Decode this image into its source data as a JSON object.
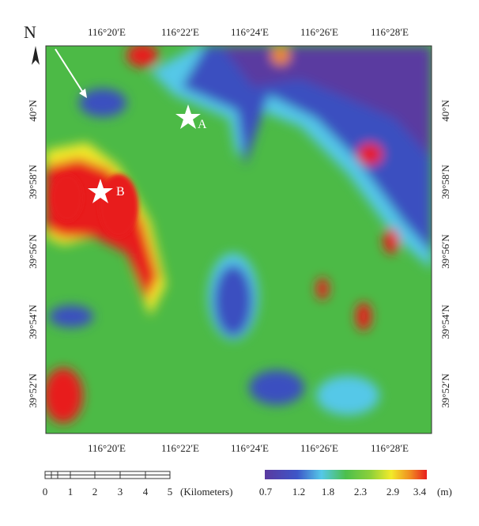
{
  "north": "N",
  "markers": [
    {
      "label": "A"
    },
    {
      "label": "B"
    }
  ],
  "top_labels": [
    "116°20′E",
    "116°22′E",
    "116°24′E",
    "116°26′E",
    "116°28′E"
  ],
  "bottom_labels": [
    "116°20′E",
    "116°22′E",
    "116°24′E",
    "116°26′E",
    "116°28′E"
  ],
  "left_labels": [
    "40°N",
    "39°58′N",
    "39°56′N",
    "39°54′N",
    "39°52′N"
  ],
  "right_labels": [
    "40°N",
    "39°58′N",
    "39°56′N",
    "39°54′N",
    "39°52′N"
  ],
  "scale_bar": {
    "labels": [
      "0",
      "1",
      "2",
      "3",
      "4",
      "5"
    ],
    "unit": "(Kilometers)"
  },
  "colorbar": {
    "labels": [
      "0.7",
      "1.2",
      "1.8",
      "2.3",
      "2.9",
      "3.4"
    ],
    "unit": "(m)"
  }
}
